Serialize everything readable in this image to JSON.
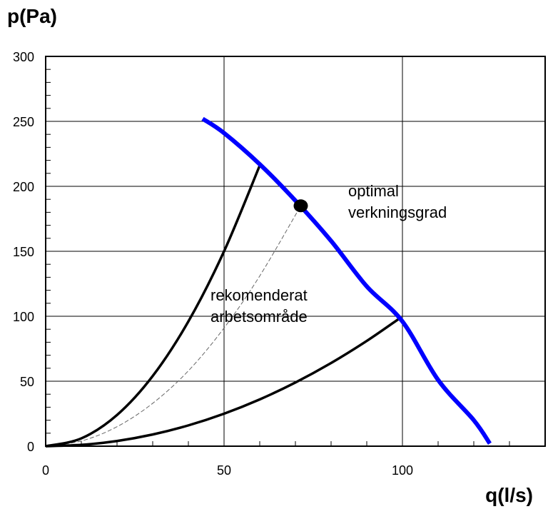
{
  "chart_data": {
    "type": "line",
    "xlabel": "q(l/s)",
    "ylabel": "p(Pa)",
    "xlim": [
      0,
      140
    ],
    "ylim": [
      0,
      300
    ],
    "x_ticks": [
      0,
      50,
      100
    ],
    "y_ticks": [
      0,
      50,
      100,
      150,
      200,
      250,
      300
    ],
    "x_tick_labels": [
      "0",
      "50",
      "100"
    ],
    "y_tick_labels": [
      "0",
      "50",
      "100",
      "150",
      "200",
      "250",
      "300"
    ],
    "grid": true,
    "series": [
      {
        "role": "fan_curve",
        "color": "#0000ff",
        "x": [
          44,
          50,
          60,
          70,
          80,
          90,
          100,
          110,
          120,
          124.5
        ],
        "y": [
          252,
          241,
          217,
          189,
          158,
          123,
          96,
          51,
          20,
          2
        ]
      },
      {
        "role": "system_curve_upper",
        "color": "#000000",
        "x": [
          0,
          10,
          20,
          30,
          40,
          50,
          60
        ],
        "y": [
          0,
          6,
          24,
          54,
          96,
          150,
          216
        ]
      },
      {
        "role": "system_curve_optimal",
        "color": "#666666",
        "dashed": true,
        "x": [
          0,
          10,
          20,
          30,
          40,
          50,
          60,
          71.5
        ],
        "y": [
          0,
          4,
          15,
          33,
          58,
          91,
          131,
          185
        ]
      },
      {
        "role": "system_curve_lower",
        "color": "#000000",
        "x": [
          0,
          10,
          20,
          30,
          40,
          50,
          60,
          70,
          80,
          90,
          99
        ],
        "y": [
          0,
          1,
          4,
          9,
          16,
          25,
          36,
          49,
          64,
          81,
          98
        ]
      }
    ],
    "optimal_point": {
      "x": 71.5,
      "y": 185
    },
    "annotations": [
      {
        "lines": [
          "optimal",
          "verkningsgrad"
        ]
      },
      {
        "lines": [
          "rekomenderat",
          "arbetsområde"
        ]
      }
    ]
  }
}
